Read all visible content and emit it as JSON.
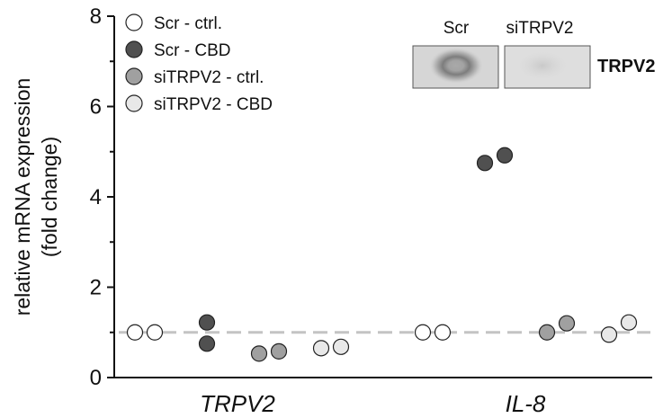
{
  "chart_data": {
    "type": "scatter",
    "ylabel_line1": "relative mRNA expression",
    "ylabel_line2": "(fold change)",
    "ylim": [
      0,
      8
    ],
    "yticks": [
      0,
      2,
      4,
      6,
      8
    ],
    "categories": [
      "TRPV2",
      "IL-8"
    ],
    "reference_line": 1,
    "grid": false,
    "legend_position": "top-left",
    "series": [
      {
        "name": "Scr - ctrl.",
        "color": "#ffffff",
        "values": {
          "TRPV2": [
            1.0,
            1.0
          ],
          "IL-8": [
            1.0,
            1.0
          ]
        }
      },
      {
        "name": "Scr - CBD",
        "color": "#505050",
        "values": {
          "TRPV2": [
            1.22,
            0.75
          ],
          "IL-8": [
            4.75,
            4.92
          ]
        }
      },
      {
        "name": "siTRPV2 - ctrl.",
        "color": "#a0a0a0",
        "values": {
          "TRPV2": [
            0.53,
            0.58
          ],
          "IL-8": [
            1.0,
            1.2
          ]
        }
      },
      {
        "name": "siTRPV2 - CBD",
        "color": "#e8e8e8",
        "values": {
          "TRPV2": [
            0.65,
            0.68
          ],
          "IL-8": [
            0.95,
            1.22
          ]
        }
      }
    ],
    "blot": {
      "lanes": [
        "Scr",
        "siTRPV2"
      ],
      "protein": "TRPV2"
    }
  }
}
